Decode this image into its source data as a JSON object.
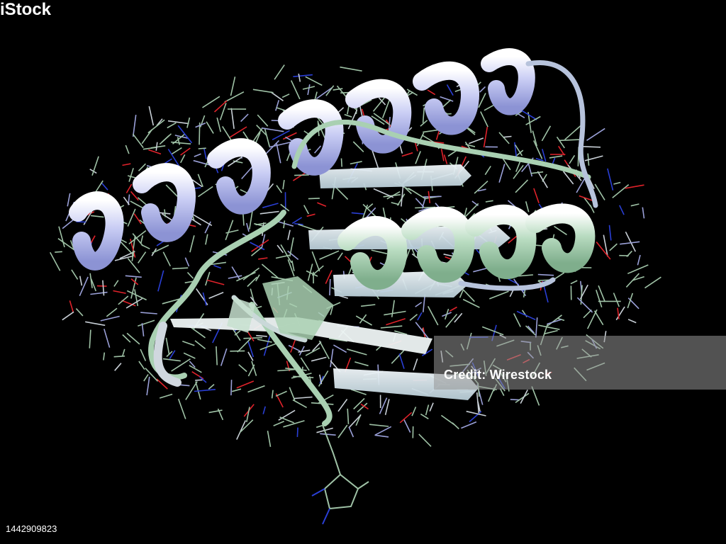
{
  "image": {
    "subject": "protein-ribbon-model",
    "background": "#000000"
  },
  "colors": {
    "helix_lavender": "#b8bff0",
    "helix_green": "#a9d0b2",
    "sheet_pale": "#d8e4ea",
    "stick_green": "#9fc2a6",
    "stick_lavender": "#9aa0d8",
    "atom_oxygen": "#e0222a",
    "atom_nitrogen": "#2a3fd6"
  },
  "watermark": {
    "logo_text": "iStock",
    "credit": "Credit: Wirestock"
  },
  "image_id": "1442909823"
}
